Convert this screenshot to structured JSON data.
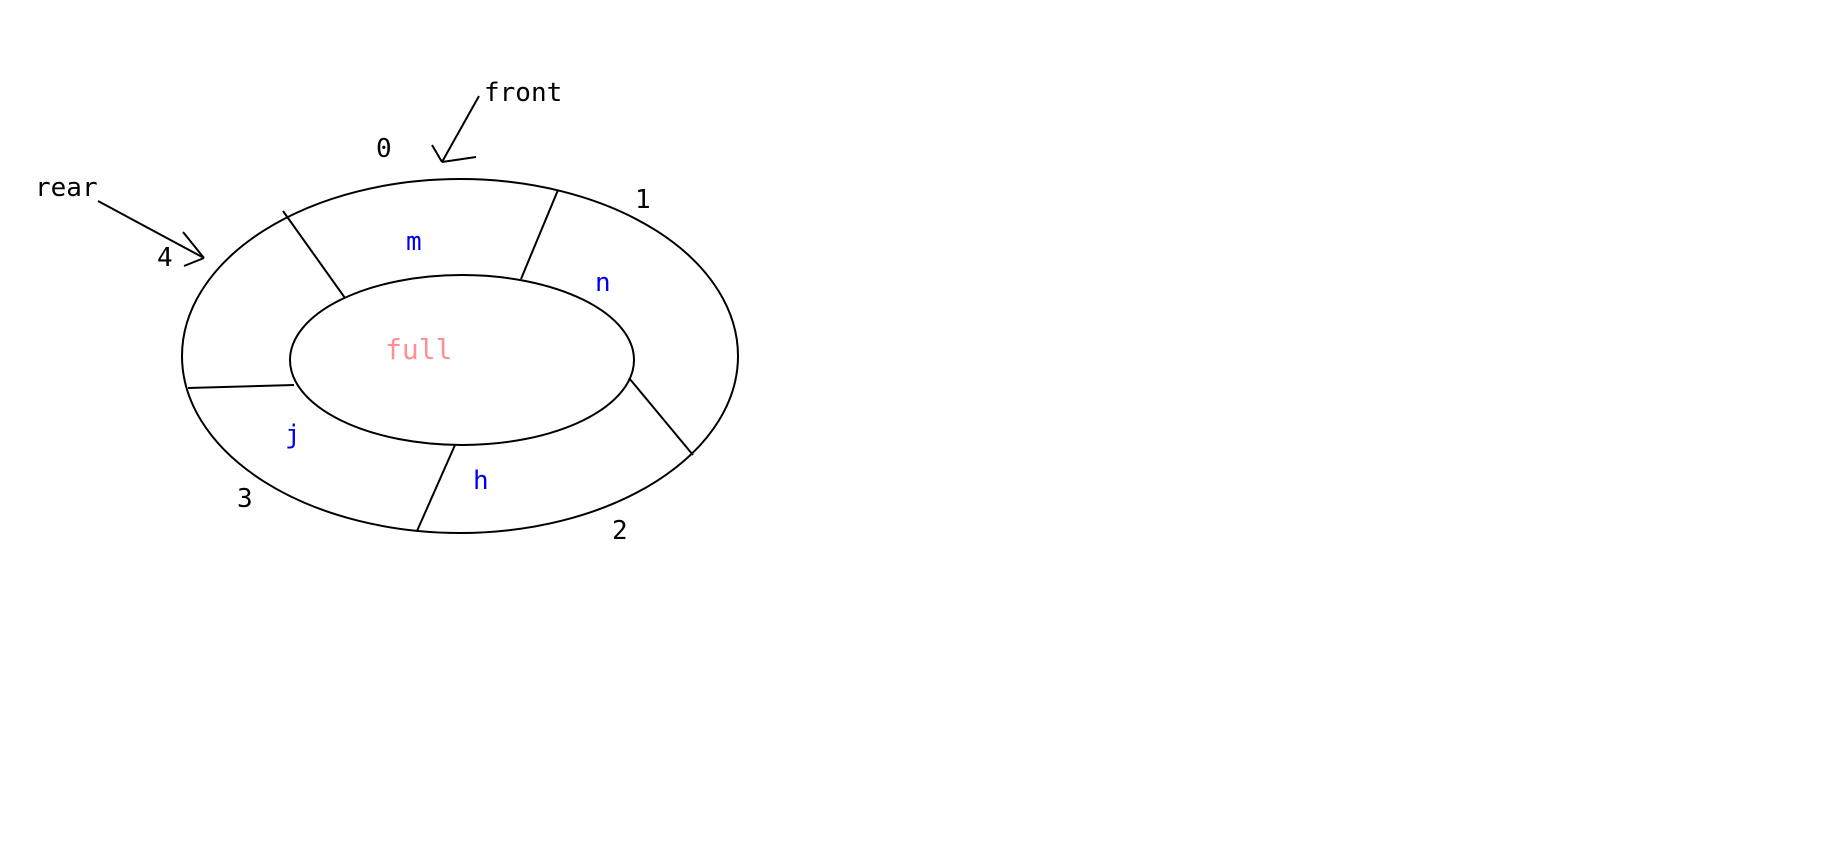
{
  "diagram": {
    "pointers": {
      "front_label": "front",
      "rear_label": "rear"
    },
    "slots": [
      {
        "index": "0",
        "value": "m"
      },
      {
        "index": "1",
        "value": "n"
      },
      {
        "index": "2",
        "value": "h"
      },
      {
        "index": "3",
        "value": "j"
      },
      {
        "index": "4",
        "value": ""
      }
    ],
    "status": "full",
    "colors": {
      "value_text": "#0000ee",
      "status_text": "#ff8f94",
      "stroke": "#000000"
    }
  }
}
